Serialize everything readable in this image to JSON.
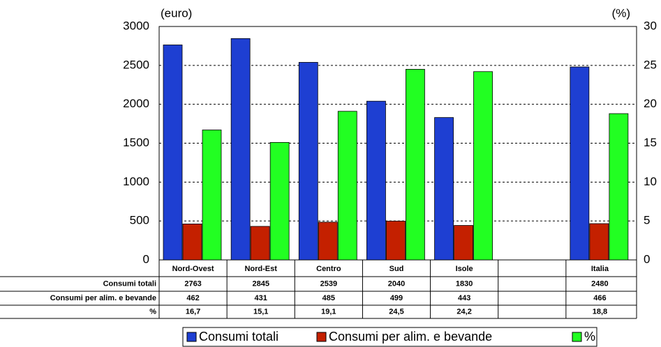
{
  "chart_data": {
    "type": "bar",
    "annotations": [
      "(euro)",
      "(%)"
    ],
    "categories": [
      "Nord-Ovest",
      "Nord-Est",
      "Centro",
      "Sud",
      "Isole",
      null,
      "Italia"
    ],
    "series": [
      {
        "name": "Consumi totali",
        "color": "#1e3fd2",
        "values": [
          2763,
          2845,
          2539,
          2040,
          1830,
          null,
          2480
        ]
      },
      {
        "name": "Consumi per alim. e bevande",
        "color": "#c42000",
        "values": [
          462,
          431,
          485,
          499,
          443,
          null,
          466
        ]
      },
      {
        "name": "%",
        "color": "#22ff22",
        "axis": "y2",
        "values": [
          16.7,
          15.1,
          19.1,
          24.5,
          24.2,
          null,
          18.8
        ],
        "value_labels": [
          "16,7",
          "15,1",
          "19,1",
          "24,5",
          "24,2",
          null,
          "18,8"
        ]
      }
    ],
    "ylim": [
      0,
      3000
    ],
    "yticks": [
      0,
      500,
      1000,
      1500,
      2000,
      2500,
      3000
    ],
    "y2lim": [
      0,
      30
    ],
    "y2ticks": [
      0,
      5,
      10,
      15,
      20,
      25,
      30
    ],
    "grid": true,
    "legend": "bottom"
  }
}
